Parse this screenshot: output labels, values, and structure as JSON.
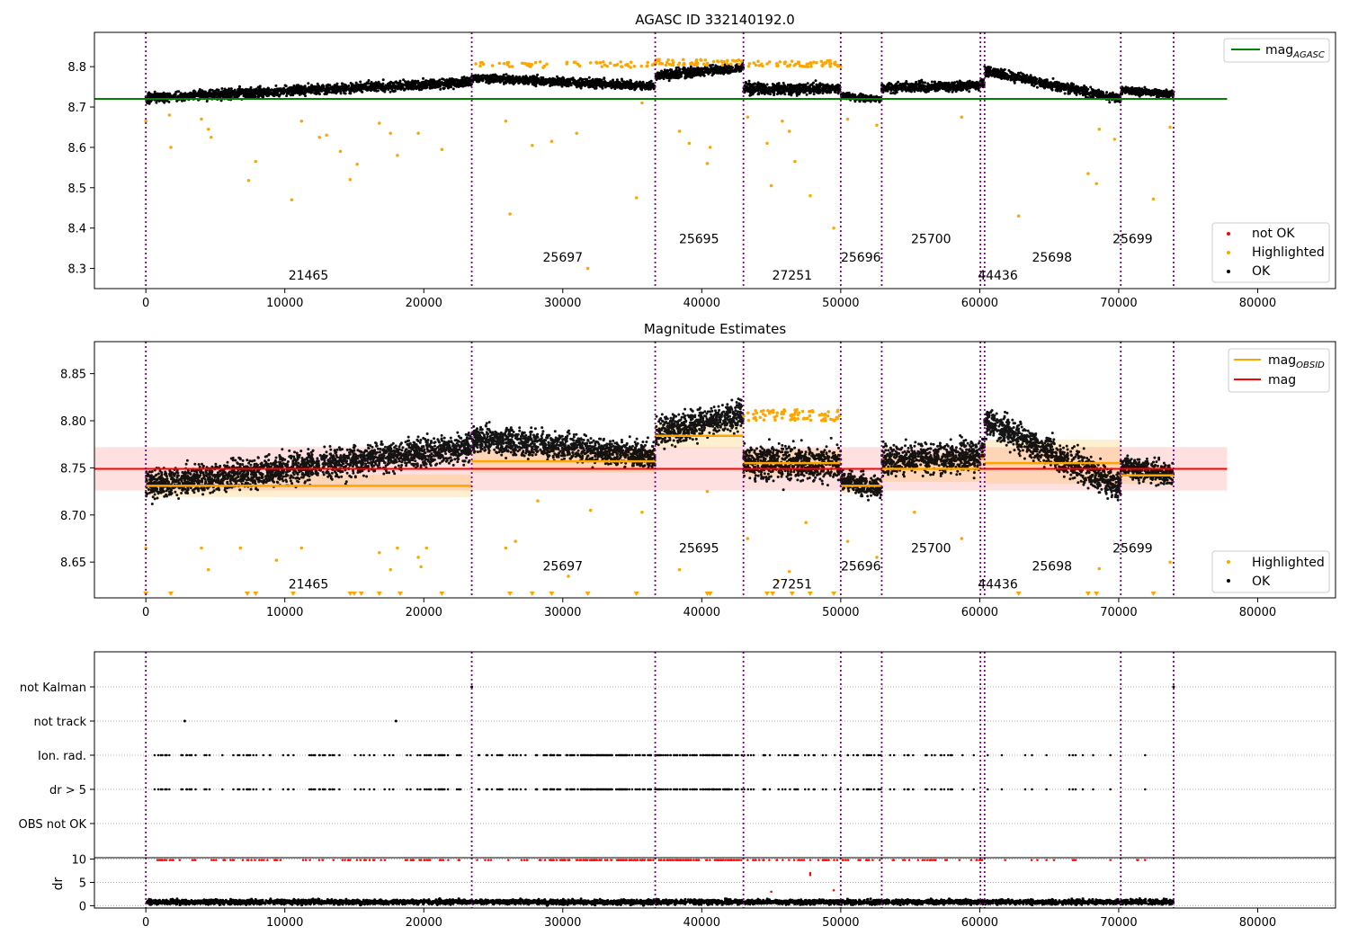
{
  "chart_data": [
    {
      "type": "scatter",
      "title": "AGASC ID 332140192.0",
      "xlim": [
        -3700,
        85600
      ],
      "ylim": [
        8.25,
        8.885
      ],
      "xticks": [
        0,
        10000,
        20000,
        30000,
        40000,
        50000,
        60000,
        70000,
        80000
      ],
      "yticks": [
        8.3,
        8.4,
        8.5,
        8.6,
        8.7,
        8.8
      ],
      "legend_upper": [
        "mag_AGASC"
      ],
      "legend_lower": [
        "not OK",
        "Highlighted",
        "OK"
      ],
      "mag_agasc": 8.72,
      "segments": [
        {
          "obsid": "21465",
          "x0": 0,
          "x1": 23450,
          "base": 8.722,
          "slope": 0.04,
          "spread": 0.014
        },
        {
          "obsid": "25697",
          "x0": 23450,
          "x1": 36650,
          "base": 8.772,
          "slope": -0.02,
          "spread": 0.012
        },
        {
          "obsid": "25695",
          "x0": 36650,
          "x1": 43000,
          "base": 8.778,
          "slope": 0.02,
          "spread": 0.014
        },
        {
          "obsid": "27251",
          "x0": 43000,
          "x1": 50000,
          "base": 8.745,
          "slope": 0.0,
          "spread": 0.016
        },
        {
          "obsid": "25696",
          "x0": 50000,
          "x1": 52950,
          "base": 8.728,
          "slope": -0.01,
          "spread": 0.01
        },
        {
          "obsid": "25700",
          "x0": 52950,
          "x1": 60050,
          "base": 8.748,
          "slope": 0.005,
          "spread": 0.014
        },
        {
          "obsid": "44436",
          "x0": 60050,
          "x1": 60350,
          "base": 8.76,
          "slope": 0.0,
          "spread": 0.012
        },
        {
          "obsid": "25698",
          "x0": 60350,
          "x1": 70150,
          "base": 8.79,
          "slope": -0.07,
          "spread": 0.014
        },
        {
          "obsid": "25699",
          "x0": 70150,
          "x1": 73950,
          "base": 8.742,
          "slope": -0.01,
          "spread": 0.01
        }
      ],
      "obsid_labels": [
        {
          "text": "21465",
          "x": 11700,
          "y": 8.272
        },
        {
          "text": "25697",
          "x": 30000,
          "y": 8.317
        },
        {
          "text": "25695",
          "x": 39800,
          "y": 8.362
        },
        {
          "text": "27251",
          "x": 46500,
          "y": 8.272
        },
        {
          "text": "25696",
          "x": 51450,
          "y": 8.317
        },
        {
          "text": "25700",
          "x": 56500,
          "y": 8.362
        },
        {
          "text": "44436",
          "x": 61300,
          "y": 8.272
        },
        {
          "text": "25698",
          "x": 65200,
          "y": 8.317
        },
        {
          "text": "25699",
          "x": 71000,
          "y": 8.362
        }
      ],
      "highlighted_outliers": [
        [
          0,
          8.665
        ],
        [
          1700,
          8.68
        ],
        [
          1800,
          8.6
        ],
        [
          4000,
          8.67
        ],
        [
          4500,
          8.645
        ],
        [
          4700,
          8.625
        ],
        [
          7400,
          8.518
        ],
        [
          7900,
          8.565
        ],
        [
          10500,
          8.47
        ],
        [
          11200,
          8.665
        ],
        [
          12500,
          8.625
        ],
        [
          13000,
          8.63
        ],
        [
          14000,
          8.59
        ],
        [
          14700,
          8.52
        ],
        [
          15200,
          8.558
        ],
        [
          16800,
          8.66
        ],
        [
          17600,
          8.635
        ],
        [
          18100,
          8.58
        ],
        [
          19600,
          8.635
        ],
        [
          21300,
          8.595
        ],
        [
          25900,
          8.665
        ],
        [
          26200,
          8.435
        ],
        [
          27800,
          8.605
        ],
        [
          29200,
          8.615
        ],
        [
          31000,
          8.635
        ],
        [
          31800,
          8.3
        ],
        [
          35300,
          8.475
        ],
        [
          35700,
          8.71
        ],
        [
          38400,
          8.64
        ],
        [
          39100,
          8.61
        ],
        [
          40400,
          8.56
        ],
        [
          40600,
          8.6
        ],
        [
          43300,
          8.675
        ],
        [
          44700,
          8.61
        ],
        [
          45000,
          8.505
        ],
        [
          45800,
          8.665
        ],
        [
          46300,
          8.64
        ],
        [
          46700,
          8.565
        ],
        [
          47800,
          8.48
        ],
        [
          49500,
          8.4
        ],
        [
          50500,
          8.67
        ],
        [
          52600,
          8.655
        ],
        [
          58700,
          8.675
        ],
        [
          62800,
          8.43
        ],
        [
          67800,
          8.535
        ],
        [
          68400,
          8.51
        ],
        [
          68600,
          8.645
        ],
        [
          69700,
          8.62
        ],
        [
          72500,
          8.472
        ],
        [
          73700,
          8.65
        ]
      ],
      "segment_lines": [
        0,
        23450,
        36650,
        43000,
        50000,
        52950,
        60050,
        60350,
        70150,
        73950
      ]
    },
    {
      "type": "scatter",
      "title": "Magnitude Estimates",
      "xlim": [
        -3700,
        85600
      ],
      "ylim": [
        8.612,
        8.884
      ],
      "xticks": [
        0,
        10000,
        20000,
        30000,
        40000,
        50000,
        60000,
        70000,
        80000
      ],
      "yticks": [
        8.65,
        8.7,
        8.75,
        8.8,
        8.85
      ],
      "legend_upper": [
        "mag_OBSID",
        "mag"
      ],
      "legend_lower": [
        "Highlighted",
        "OK"
      ],
      "mag": 8.749,
      "mag_band": [
        8.726,
        8.772
      ],
      "mag_xrange": [
        -3700,
        77800
      ],
      "obsid_mags": [
        {
          "x0": 0,
          "x1": 23450,
          "mag": 8.731,
          "lo": 8.719,
          "hi": 8.743
        },
        {
          "x0": 23450,
          "x1": 36650,
          "mag": 8.757,
          "lo": 8.745,
          "hi": 8.769
        },
        {
          "x0": 36650,
          "x1": 43000,
          "mag": 8.784,
          "lo": 8.771,
          "hi": 8.797
        },
        {
          "x0": 43000,
          "x1": 50000,
          "mag": 8.755,
          "lo": 8.741,
          "hi": 8.769
        },
        {
          "x0": 50000,
          "x1": 52950,
          "mag": 8.731,
          "lo": 8.723,
          "hi": 8.739
        },
        {
          "x0": 52950,
          "x1": 60050,
          "mag": 8.749,
          "lo": 8.735,
          "hi": 8.763
        },
        {
          "x0": 60050,
          "x1": 60350,
          "mag": 8.76,
          "lo": 8.745,
          "hi": 8.775
        },
        {
          "x0": 60350,
          "x1": 70150,
          "mag": 8.755,
          "lo": 8.733,
          "hi": 8.78
        },
        {
          "x0": 70150,
          "x1": 73950,
          "mag": 8.742,
          "lo": 8.733,
          "hi": 8.751
        }
      ],
      "obsid_labels": [
        {
          "text": "21465",
          "x": 11700,
          "y": 8.622
        },
        {
          "text": "25697",
          "x": 30000,
          "y": 8.641
        },
        {
          "text": "25695",
          "x": 39800,
          "y": 8.66
        },
        {
          "text": "27251",
          "x": 46500,
          "y": 8.622
        },
        {
          "text": "25696",
          "x": 51450,
          "y": 8.641
        },
        {
          "text": "25700",
          "x": 56500,
          "y": 8.66
        },
        {
          "text": "44436",
          "x": 61300,
          "y": 8.622
        },
        {
          "text": "25698",
          "x": 65200,
          "y": 8.641
        },
        {
          "text": "25699",
          "x": 71000,
          "y": 8.66
        }
      ],
      "floor_markers": [
        0,
        1800,
        7300,
        7900,
        10600,
        14700,
        15000,
        15500,
        16800,
        18300,
        21300,
        26200,
        27800,
        29200,
        31800,
        35300,
        40400,
        40600,
        44700,
        45100,
        46500,
        47800,
        49500,
        62800,
        67800,
        68400,
        72500
      ],
      "highlighted_outliers": [
        [
          0,
          8.665
        ],
        [
          4000,
          8.665
        ],
        [
          4500,
          8.642
        ],
        [
          6800,
          8.665
        ],
        [
          9400,
          8.652
        ],
        [
          11200,
          8.665
        ],
        [
          16800,
          8.66
        ],
        [
          17600,
          8.642
        ],
        [
          18100,
          8.665
        ],
        [
          19600,
          8.655
        ],
        [
          19800,
          8.645
        ],
        [
          20200,
          8.665
        ],
        [
          25900,
          8.665
        ],
        [
          26600,
          8.672
        ],
        [
          28200,
          8.715
        ],
        [
          30400,
          8.635
        ],
        [
          32000,
          8.705
        ],
        [
          35700,
          8.703
        ],
        [
          38400,
          8.642
        ],
        [
          40400,
          8.725
        ],
        [
          43300,
          8.675
        ],
        [
          45500,
          8.63
        ],
        [
          46300,
          8.64
        ],
        [
          47500,
          8.692
        ],
        [
          50500,
          8.672
        ],
        [
          52600,
          8.655
        ],
        [
          55300,
          8.703
        ],
        [
          58700,
          8.675
        ],
        [
          68600,
          8.643
        ],
        [
          73700,
          8.65
        ]
      ],
      "segment_lines": [
        0,
        23450,
        36650,
        43000,
        50000,
        52950,
        60050,
        60350,
        70150,
        73950
      ]
    },
    {
      "type": "scatter",
      "title": "",
      "xlim": [
        -3700,
        85600
      ],
      "category_labels": [
        "not Kalman",
        "not track",
        "Ion. rad.",
        "dr > 5",
        "OBS not OK"
      ],
      "not_track_x": [
        2800,
        18000
      ],
      "not_kalman_x": [
        23450,
        73950
      ],
      "flag_segments": [
        [
          0,
          60300,
          220
        ],
        [
          60300,
          72000,
          7
        ]
      ],
      "segment_lines": [
        0,
        23450,
        36650,
        43000,
        50000,
        52950,
        60050,
        60350,
        70150,
        73950
      ]
    },
    {
      "type": "scatter",
      "title": "",
      "xlim": [
        -3700,
        85600
      ],
      "ylim": [
        -0.5,
        10.3
      ],
      "xticks": [
        0,
        10000,
        20000,
        30000,
        40000,
        50000,
        60000,
        70000,
        80000
      ],
      "yticks": [
        0,
        5,
        10
      ],
      "ylabel": "dr",
      "dr_mean": 0.8,
      "dr_high_points": [
        [
          47800,
          7.0
        ],
        [
          47800,
          6.6
        ],
        [
          45000,
          3.0
        ],
        [
          49500,
          3.3
        ]
      ],
      "segment_lines": [
        0,
        23450,
        36650,
        43000,
        50000,
        52950,
        60050,
        60350,
        70150,
        73950
      ]
    }
  ],
  "legend_text": {
    "mag_agasc_main": "mag",
    "mag_agasc_sub": "AGASC",
    "mag_obsid_main": "mag",
    "mag_obsid_sub": "OBSID",
    "mag": "mag",
    "not_ok": "not OK",
    "highlighted": "Highlighted",
    "ok": "OK"
  },
  "colors": {
    "ok": "#000000",
    "highlighted": "#ffa500",
    "not_ok": "#ff0000",
    "agasc_line": "#008000",
    "mag_line": "#ff0000",
    "obsid_line": "#ffa500",
    "segment_line": "#800080"
  }
}
